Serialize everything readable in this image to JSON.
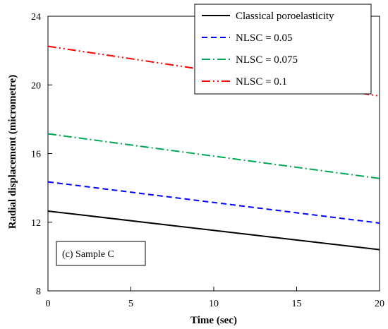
{
  "chart_data": {
    "type": "line",
    "title": "",
    "xlabel": "Time (sec)",
    "ylabel": "Radial displacement (micrometre)",
    "xlim": [
      0,
      20
    ],
    "ylim": [
      8,
      24
    ],
    "xticks": [
      0,
      5,
      10,
      15,
      20
    ],
    "yticks": [
      8,
      12,
      16,
      20,
      24
    ],
    "xtick_labels": [
      "0",
      "5",
      "10",
      "15",
      "20"
    ],
    "ytick_labels": [
      "8",
      "12",
      "16",
      "20",
      "24"
    ],
    "grid": false,
    "legend_placement": "top-right",
    "annotation": "(c) Sample C",
    "x": [
      0,
      20
    ],
    "series": [
      {
        "name": "Classical poroelasticity",
        "values": [
          12.65,
          10.4
        ],
        "color": "#000000",
        "style": "solid"
      },
      {
        "name": "NLSC = 0.05",
        "values": [
          14.35,
          11.95
        ],
        "color": "#0000ff",
        "style": "dashed"
      },
      {
        "name": "NLSC = 0.075",
        "values": [
          17.15,
          14.55
        ],
        "color": "#00a651",
        "style": "dash-dot"
      },
      {
        "name": "NLSC = 0.1",
        "values": [
          22.25,
          19.35
        ],
        "color": "#ff0000",
        "style": "dash-dot-dot"
      }
    ]
  }
}
